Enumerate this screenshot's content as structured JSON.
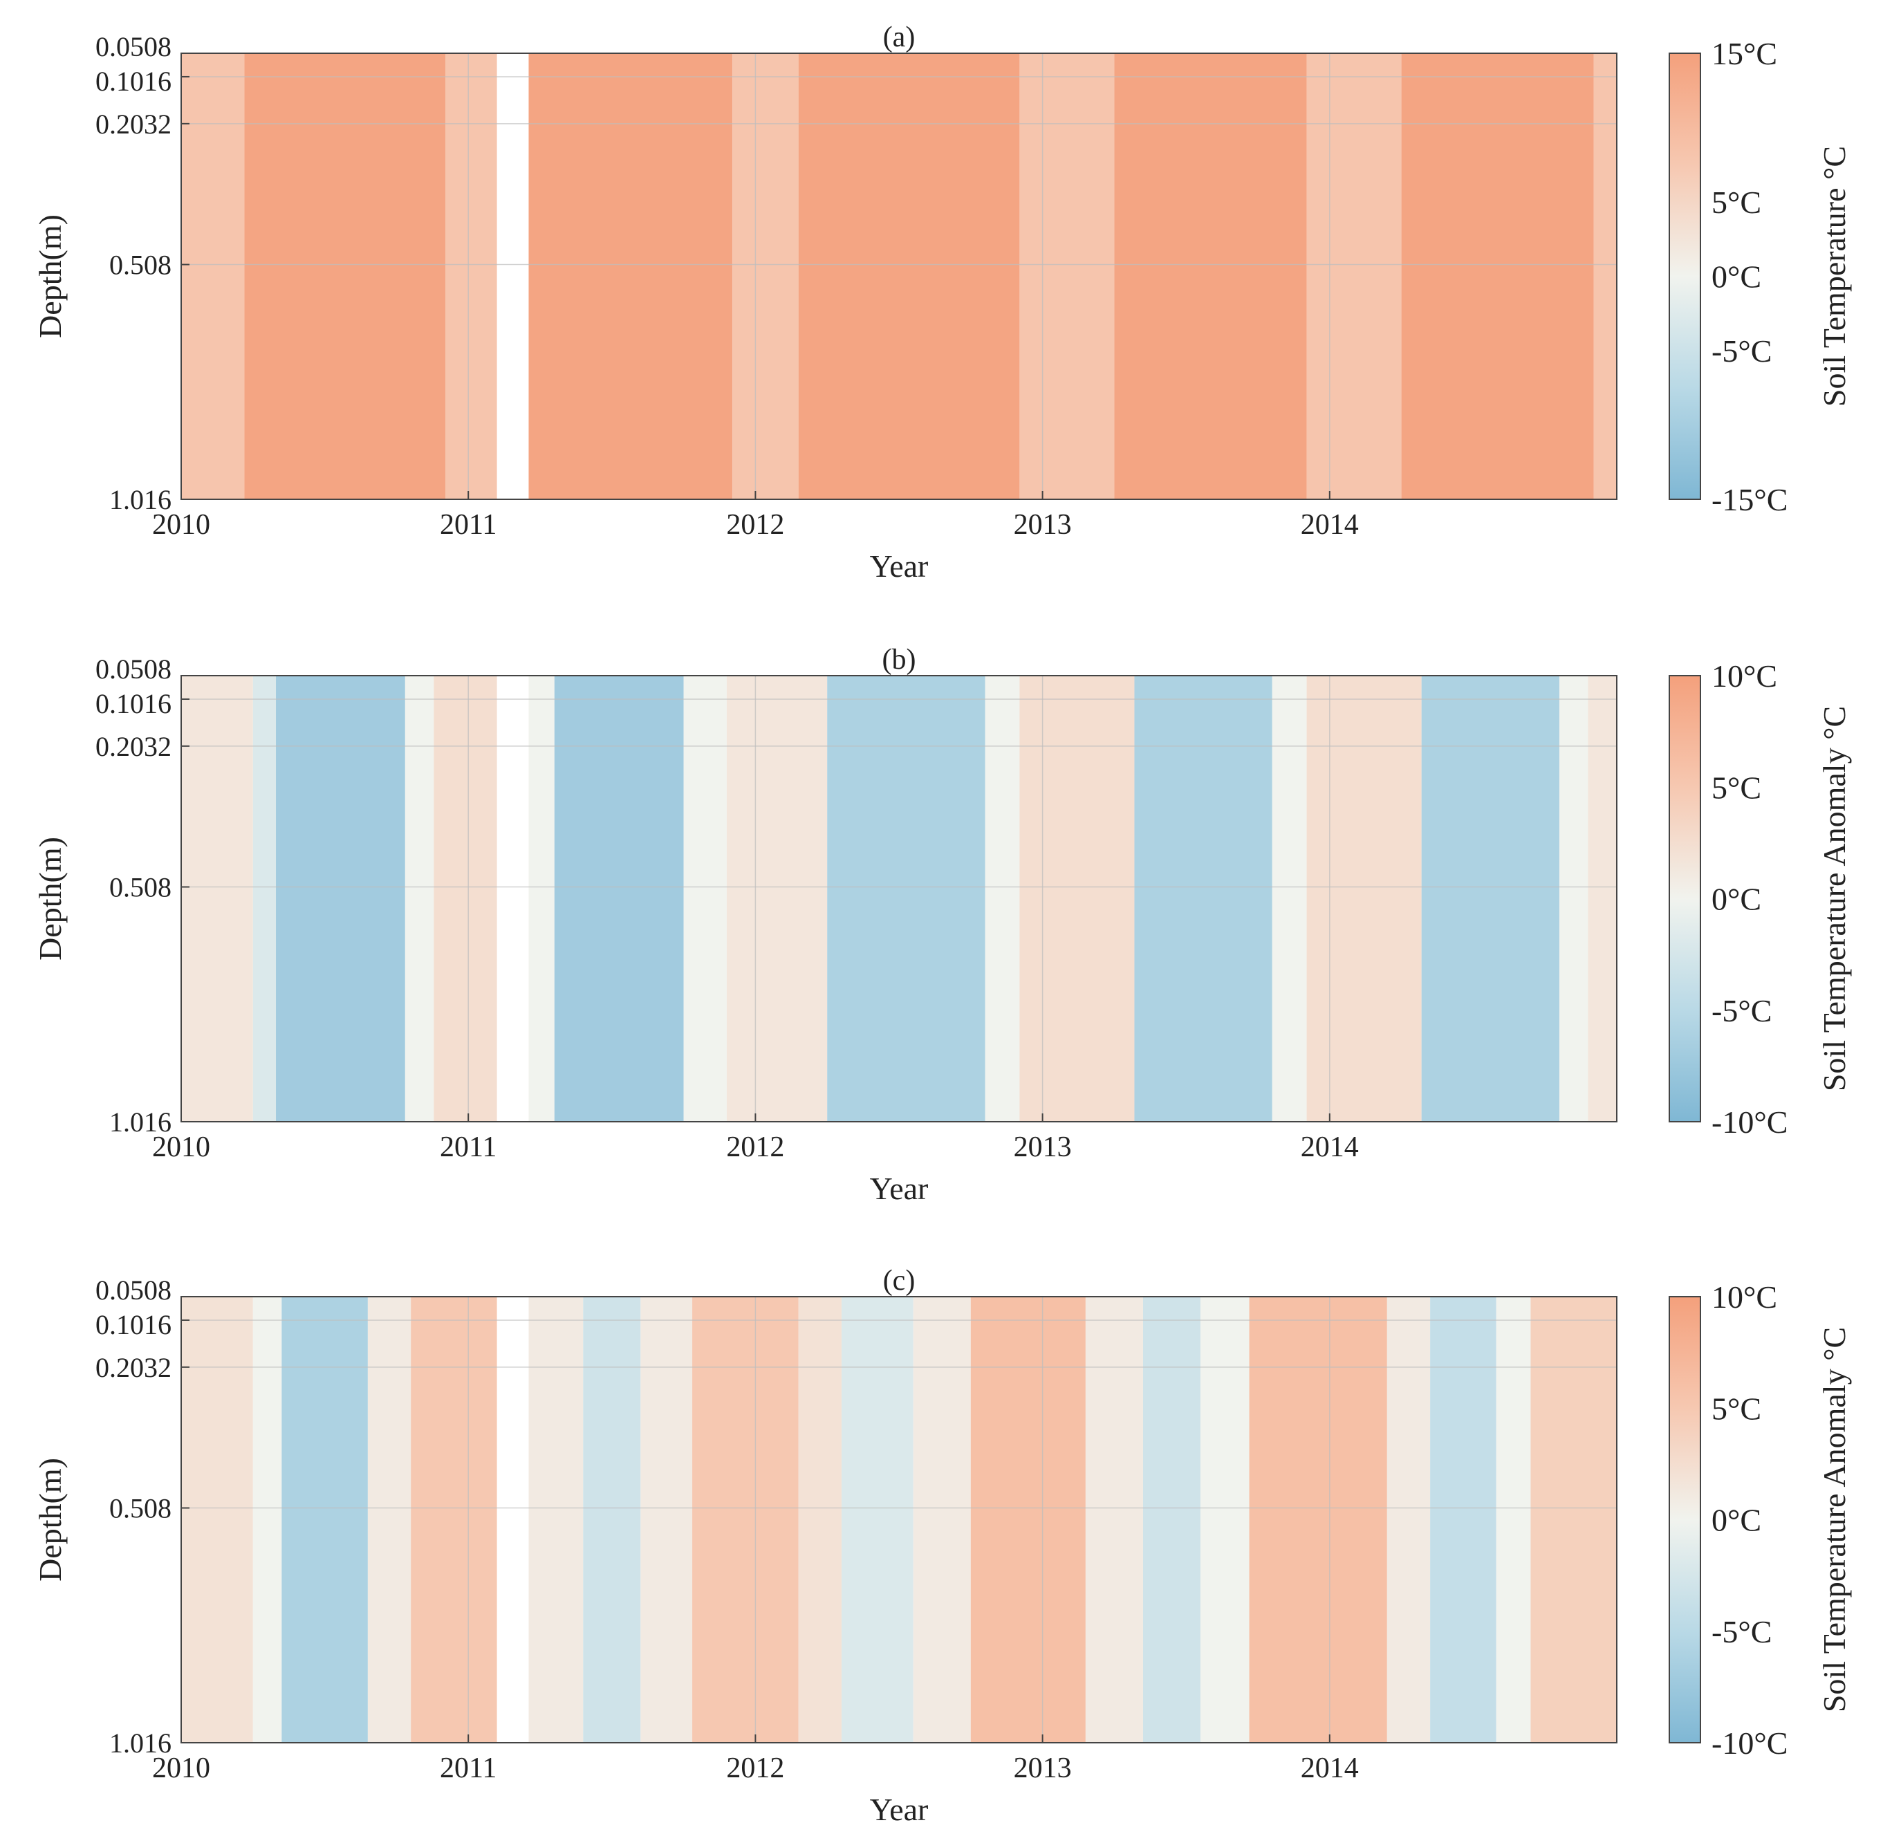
{
  "figure": {
    "description_colors": {
      "warm_max": "#f4a07c",
      "warm_mid": "#f6c8b1",
      "neutral": "#f1f3ee",
      "cool_mid": "#b9d9e6",
      "cool_max": "#7fb7d4",
      "gap": "#ffffff",
      "grid": "#bdbdbd"
    }
  },
  "chart_data": [
    {
      "type": "heatmap",
      "panel_label": "(a)",
      "title": "(a)",
      "xlabel": "Year",
      "ylabel": "Depth(m)",
      "x_ticks": [
        "2010",
        "2011",
        "2012",
        "2013",
        "2014"
      ],
      "x_tick_values": [
        2010,
        2011,
        2012,
        2013,
        2014
      ],
      "xlim": [
        2010.0,
        2015.0
      ],
      "y_ticks": [
        "0.0508",
        "0.1016",
        "0.2032",
        "0.508",
        "1.016"
      ],
      "y_tick_values": [
        0.0508,
        0.1016,
        0.2032,
        0.508,
        1.016
      ],
      "ylim": [
        0.0508,
        1.016
      ],
      "y_direction": "down",
      "colorbar": {
        "label": "Soil Temperature °C",
        "ticks": [
          "15°C",
          "5°C",
          "0°C",
          "-5°C",
          "-15°C"
        ],
        "tick_values": [
          15,
          5,
          0,
          -5,
          -15
        ],
        "range": [
          -15,
          15
        ]
      },
      "missing_data": [
        [
          2011.1,
          2011.21
        ]
      ],
      "bands": [
        {
          "start": 2010.0,
          "end": 2010.22,
          "value": 8
        },
        {
          "start": 2010.22,
          "end": 2010.92,
          "value": 14
        },
        {
          "start": 2010.92,
          "end": 2011.1,
          "value": 8
        },
        {
          "start": 2011.21,
          "end": 2011.92,
          "value": 14
        },
        {
          "start": 2011.92,
          "end": 2012.15,
          "value": 8
        },
        {
          "start": 2012.15,
          "end": 2012.92,
          "value": 14
        },
        {
          "start": 2012.92,
          "end": 2013.25,
          "value": 8
        },
        {
          "start": 2013.25,
          "end": 2013.92,
          "value": 14
        },
        {
          "start": 2013.92,
          "end": 2014.25,
          "value": 8
        },
        {
          "start": 2014.25,
          "end": 2014.92,
          "value": 14
        },
        {
          "start": 2014.92,
          "end": 2015.0,
          "value": 8
        }
      ]
    },
    {
      "type": "heatmap",
      "panel_label": "(b)",
      "title": "(b)",
      "xlabel": "Year",
      "ylabel": "Depth(m)",
      "x_ticks": [
        "2010",
        "2011",
        "2012",
        "2013",
        "2014"
      ],
      "x_tick_values": [
        2010,
        2011,
        2012,
        2013,
        2014
      ],
      "xlim": [
        2010.0,
        2015.0
      ],
      "y_ticks": [
        "0.0508",
        "0.1016",
        "0.2032",
        "0.508",
        "1.016"
      ],
      "y_tick_values": [
        0.0508,
        0.1016,
        0.2032,
        0.508,
        1.016
      ],
      "ylim": [
        0.0508,
        1.016
      ],
      "y_direction": "down",
      "colorbar": {
        "label": "Soil Temperature Anomaly °C",
        "ticks": [
          "10°C",
          "5°C",
          "0°C",
          "-5°C",
          "-10°C"
        ],
        "tick_values": [
          10,
          5,
          0,
          -5,
          -10
        ],
        "range": [
          -10,
          10
        ]
      },
      "missing_data": [
        [
          2011.1,
          2011.21
        ]
      ],
      "bands": [
        {
          "start": 2010.0,
          "end": 2010.25,
          "value": 1.5
        },
        {
          "start": 2010.25,
          "end": 2010.33,
          "value": -2
        },
        {
          "start": 2010.33,
          "end": 2010.78,
          "value": -7
        },
        {
          "start": 2010.78,
          "end": 2010.88,
          "value": 0
        },
        {
          "start": 2010.88,
          "end": 2011.1,
          "value": 2.5
        },
        {
          "start": 2011.21,
          "end": 2011.3,
          "value": 0
        },
        {
          "start": 2011.3,
          "end": 2011.75,
          "value": -7
        },
        {
          "start": 2011.75,
          "end": 2011.9,
          "value": 0
        },
        {
          "start": 2011.9,
          "end": 2012.25,
          "value": 1.5
        },
        {
          "start": 2012.25,
          "end": 2012.8,
          "value": -6
        },
        {
          "start": 2012.8,
          "end": 2012.92,
          "value": 0
        },
        {
          "start": 2012.92,
          "end": 2013.32,
          "value": 2.5
        },
        {
          "start": 2013.32,
          "end": 2013.8,
          "value": -6
        },
        {
          "start": 2013.8,
          "end": 2013.92,
          "value": 0
        },
        {
          "start": 2013.92,
          "end": 2014.32,
          "value": 2.5
        },
        {
          "start": 2014.32,
          "end": 2014.8,
          "value": -6
        },
        {
          "start": 2014.8,
          "end": 2014.9,
          "value": 0
        },
        {
          "start": 2014.9,
          "end": 2015.0,
          "value": 1.5
        }
      ]
    },
    {
      "type": "heatmap",
      "panel_label": "(c)",
      "title": "(c)",
      "xlabel": "Year",
      "ylabel": "Depth(m)",
      "x_ticks": [
        "2010",
        "2011",
        "2012",
        "2013",
        "2014"
      ],
      "x_tick_values": [
        2010,
        2011,
        2012,
        2013,
        2014
      ],
      "xlim": [
        2010.0,
        2015.0
      ],
      "y_ticks": [
        "0.0508",
        "0.1016",
        "0.2032",
        "0.508",
        "1.016"
      ],
      "y_tick_values": [
        0.0508,
        0.1016,
        0.2032,
        0.508,
        1.016
      ],
      "ylim": [
        0.0508,
        1.016
      ],
      "y_direction": "down",
      "colorbar": {
        "label": "Soil Temperature Anomaly °C",
        "ticks": [
          "10°C",
          "5°C",
          "0°C",
          "-5°C",
          "-10°C"
        ],
        "tick_values": [
          10,
          5,
          0,
          -5,
          -10
        ],
        "range": [
          -10,
          10
        ]
      },
      "missing_data": [
        [
          2011.1,
          2011.21
        ]
      ],
      "bands": [
        {
          "start": 2010.0,
          "end": 2010.25,
          "value": 2
        },
        {
          "start": 2010.25,
          "end": 2010.35,
          "value": 0
        },
        {
          "start": 2010.35,
          "end": 2010.65,
          "value": -6
        },
        {
          "start": 2010.65,
          "end": 2010.8,
          "value": 1
        },
        {
          "start": 2010.8,
          "end": 2011.1,
          "value": 5
        },
        {
          "start": 2011.21,
          "end": 2011.4,
          "value": 1
        },
        {
          "start": 2011.4,
          "end": 2011.6,
          "value": -3
        },
        {
          "start": 2011.6,
          "end": 2011.78,
          "value": 1
        },
        {
          "start": 2011.78,
          "end": 2012.15,
          "value": 5
        },
        {
          "start": 2012.15,
          "end": 2012.3,
          "value": 2
        },
        {
          "start": 2012.3,
          "end": 2012.55,
          "value": -2
        },
        {
          "start": 2012.55,
          "end": 2012.75,
          "value": 1
        },
        {
          "start": 2012.75,
          "end": 2013.15,
          "value": 6
        },
        {
          "start": 2013.15,
          "end": 2013.35,
          "value": 1
        },
        {
          "start": 2013.35,
          "end": 2013.55,
          "value": -3
        },
        {
          "start": 2013.55,
          "end": 2013.72,
          "value": 0
        },
        {
          "start": 2013.72,
          "end": 2014.2,
          "value": 6
        },
        {
          "start": 2014.2,
          "end": 2014.35,
          "value": 1
        },
        {
          "start": 2014.35,
          "end": 2014.58,
          "value": -4
        },
        {
          "start": 2014.58,
          "end": 2014.7,
          "value": 0
        },
        {
          "start": 2014.7,
          "end": 2015.0,
          "value": 4
        }
      ]
    }
  ]
}
